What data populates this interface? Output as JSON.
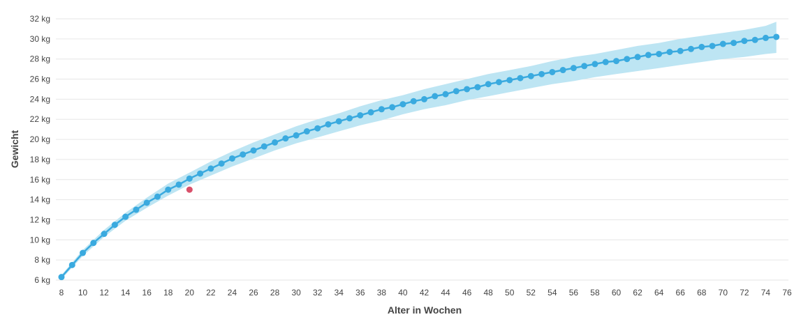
{
  "chart_data": {
    "type": "line",
    "xlabel": "Alter in Wochen",
    "ylabel": "Gewicht",
    "xlim": [
      8,
      76
    ],
    "ylim": [
      6,
      32
    ],
    "x_ticks": [
      8,
      10,
      12,
      14,
      16,
      18,
      20,
      22,
      24,
      26,
      28,
      30,
      32,
      34,
      36,
      38,
      40,
      42,
      44,
      46,
      48,
      50,
      52,
      54,
      56,
      58,
      60,
      62,
      64,
      66,
      68,
      70,
      72,
      74,
      76
    ],
    "y_ticks": [
      6,
      8,
      10,
      12,
      14,
      16,
      18,
      20,
      22,
      24,
      26,
      28,
      30,
      32
    ],
    "y_tick_labels": [
      "6 kg",
      "8 kg",
      "10 kg",
      "12 kg",
      "14 kg",
      "16 kg",
      "18 kg",
      "20 kg",
      "22 kg",
      "24 kg",
      "26 kg",
      "28 kg",
      "30 kg",
      "32 kg"
    ],
    "grid": true,
    "series": [
      {
        "role": "expected-weight",
        "color": "#3aaadf",
        "x": [
          8,
          9,
          10,
          11,
          12,
          13,
          14,
          15,
          16,
          17,
          18,
          19,
          20,
          21,
          22,
          23,
          24,
          25,
          26,
          27,
          28,
          29,
          30,
          31,
          32,
          33,
          34,
          35,
          36,
          37,
          38,
          39,
          40,
          41,
          42,
          43,
          44,
          45,
          46,
          47,
          48,
          49,
          50,
          51,
          52,
          53,
          54,
          55,
          56,
          57,
          58,
          59,
          60,
          61,
          62,
          63,
          64,
          65,
          66,
          67,
          68,
          69,
          70,
          71,
          72,
          73,
          74,
          75
        ],
        "values": [
          6.3,
          7.5,
          8.7,
          9.7,
          10.6,
          11.5,
          12.3,
          13.0,
          13.7,
          14.3,
          15.0,
          15.5,
          16.1,
          16.6,
          17.1,
          17.6,
          18.1,
          18.5,
          18.9,
          19.3,
          19.7,
          20.1,
          20.4,
          20.8,
          21.1,
          21.5,
          21.8,
          22.1,
          22.4,
          22.7,
          23.0,
          23.2,
          23.5,
          23.8,
          24.0,
          24.3,
          24.5,
          24.8,
          25.0,
          25.2,
          25.5,
          25.7,
          25.9,
          26.1,
          26.3,
          26.5,
          26.7,
          26.9,
          27.1,
          27.3,
          27.5,
          27.7,
          27.8,
          28.0,
          28.2,
          28.4,
          28.5,
          28.7,
          28.8,
          29.0,
          29.2,
          29.3,
          29.5,
          29.6,
          29.8,
          29.9,
          30.1,
          30.2
        ]
      },
      {
        "role": "measured-weight",
        "color": "#d9506a",
        "x": [
          20
        ],
        "values": [
          15.0
        ]
      }
    ],
    "band": {
      "role": "normal-range",
      "color": "#bde5f3",
      "x": [
        8,
        10,
        12,
        14,
        16,
        18,
        20,
        22,
        24,
        26,
        28,
        30,
        32,
        34,
        36,
        38,
        40,
        42,
        44,
        46,
        48,
        50,
        52,
        54,
        56,
        58,
        60,
        62,
        64,
        66,
        68,
        70,
        72,
        74,
        75
      ],
      "lower": [
        6.1,
        8.4,
        10.3,
        11.9,
        13.2,
        14.4,
        15.5,
        16.4,
        17.3,
        18.1,
        18.9,
        19.6,
        20.2,
        20.8,
        21.4,
        21.9,
        22.5,
        23.0,
        23.4,
        23.9,
        24.3,
        24.7,
        25.1,
        25.5,
        25.8,
        26.2,
        26.5,
        26.8,
        27.1,
        27.4,
        27.7,
        28.0,
        28.2,
        28.5,
        28.6
      ],
      "upper": [
        6.5,
        9.0,
        11.0,
        12.7,
        14.2,
        15.6,
        16.7,
        17.8,
        18.8,
        19.7,
        20.5,
        21.3,
        22.0,
        22.6,
        23.3,
        23.9,
        24.4,
        25.0,
        25.5,
        26.0,
        26.5,
        26.9,
        27.3,
        27.8,
        28.2,
        28.5,
        28.9,
        29.3,
        29.6,
        30.0,
        30.3,
        30.6,
        30.9,
        31.3,
        31.7
      ]
    }
  }
}
